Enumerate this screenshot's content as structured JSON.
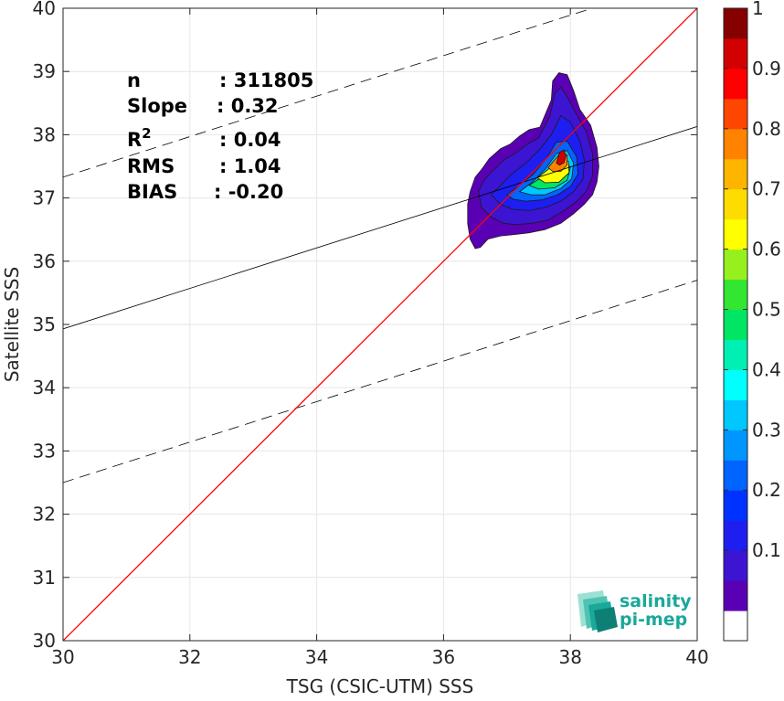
{
  "chart_data": {
    "type": "heatmap",
    "subtype": "scatter density contour",
    "xlabel": "TSG (CSIC-UTM) SSS",
    "ylabel": "Satellite SSS",
    "xlim": [
      30,
      40
    ],
    "ylim": [
      30,
      40
    ],
    "xticks": [
      "30",
      "32",
      "34",
      "36",
      "38",
      "40"
    ],
    "yticks": [
      "30",
      "31",
      "32",
      "33",
      "34",
      "35",
      "36",
      "37",
      "38",
      "39",
      "40"
    ],
    "grid": true,
    "identity_line": {
      "color": "#ff0000",
      "x": [
        30,
        40
      ],
      "y": [
        30,
        40
      ]
    },
    "regression_line": {
      "color": "#000000",
      "x": [
        30,
        40
      ],
      "y": [
        34.93,
        38.13
      ]
    },
    "error_bounds": [
      {
        "style": "dashed",
        "x": [
          30,
          40
        ],
        "y": [
          37.33,
          40.53
        ]
      },
      {
        "style": "dashed",
        "x": [
          30,
          40
        ],
        "y": [
          32.5,
          35.7
        ]
      }
    ],
    "stats": [
      {
        "label": "n",
        "value": ": 311805"
      },
      {
        "label": "Slope",
        "value": ": 0.32"
      },
      {
        "label": "R",
        "sup": "2",
        "value": ": 0.04"
      },
      {
        "label": "RMS",
        "value": ": 1.04"
      },
      {
        "label": "BIAS",
        "value": ": -0.20"
      }
    ],
    "colorbar": {
      "ticks": [
        "0.1",
        "0.2",
        "0.3",
        "0.4",
        "0.5",
        "0.6",
        "0.7",
        "0.8",
        "0.9",
        "1"
      ],
      "tick_values": [
        0.1,
        0.2,
        0.3,
        0.4,
        0.5,
        0.6,
        0.7,
        0.8,
        0.9,
        1.0
      ],
      "levels": [
        0,
        0.05,
        0.1,
        0.15,
        0.2,
        0.25,
        0.3,
        0.35,
        0.4,
        0.45,
        0.5,
        0.55,
        0.6,
        0.65,
        0.7,
        0.75,
        0.8,
        0.85,
        0.9,
        0.95,
        1.0
      ],
      "colors": [
        "#ffffff",
        "#5a00b4",
        "#3c14d2",
        "#1e1ef0",
        "#0032ff",
        "#0064ff",
        "#0096ff",
        "#00c8ff",
        "#00ffff",
        "#00f0b4",
        "#00e664",
        "#32e632",
        "#96f01e",
        "#ffff00",
        "#ffdc00",
        "#ffb400",
        "#ff8200",
        "#ff4600",
        "#ff0000",
        "#d20000",
        "#870000"
      ]
    },
    "density_contours": [
      {
        "level": 0.05,
        "points": [
          [
            36.42,
            37.1
          ],
          [
            36.5,
            37.33
          ],
          [
            36.6,
            37.45
          ],
          [
            36.72,
            37.62
          ],
          [
            36.9,
            37.78
          ],
          [
            37.05,
            37.85
          ],
          [
            37.2,
            37.98
          ],
          [
            37.35,
            38.08
          ],
          [
            37.52,
            38.12
          ],
          [
            37.7,
            38.55
          ],
          [
            37.72,
            38.85
          ],
          [
            37.82,
            38.98
          ],
          [
            37.95,
            38.95
          ],
          [
            38.05,
            38.7
          ],
          [
            38.15,
            38.4
          ],
          [
            38.32,
            38.15
          ],
          [
            38.42,
            37.8
          ],
          [
            38.45,
            37.5
          ],
          [
            38.42,
            37.25
          ],
          [
            38.35,
            37.05
          ],
          [
            38.22,
            36.9
          ],
          [
            38.05,
            36.75
          ],
          [
            37.85,
            36.6
          ],
          [
            37.6,
            36.5
          ],
          [
            37.35,
            36.45
          ],
          [
            37.1,
            36.42
          ],
          [
            36.9,
            36.4
          ],
          [
            36.7,
            36.35
          ],
          [
            36.58,
            36.22
          ],
          [
            36.5,
            36.2
          ],
          [
            36.42,
            36.35
          ],
          [
            36.38,
            36.6
          ],
          [
            36.38,
            36.9
          ]
        ]
      },
      {
        "level": 0.1,
        "points": [
          [
            36.55,
            37.1
          ],
          [
            36.65,
            37.3
          ],
          [
            36.8,
            37.45
          ],
          [
            36.95,
            37.6
          ],
          [
            37.15,
            37.72
          ],
          [
            37.32,
            37.85
          ],
          [
            37.5,
            37.95
          ],
          [
            37.68,
            38.3
          ],
          [
            37.75,
            38.65
          ],
          [
            37.85,
            38.75
          ],
          [
            37.95,
            38.6
          ],
          [
            38.08,
            38.35
          ],
          [
            38.25,
            38.05
          ],
          [
            38.35,
            37.7
          ],
          [
            38.35,
            37.35
          ],
          [
            38.25,
            37.1
          ],
          [
            38.1,
            36.95
          ],
          [
            37.9,
            36.8
          ],
          [
            37.65,
            36.65
          ],
          [
            37.4,
            36.6
          ],
          [
            37.15,
            36.58
          ],
          [
            36.95,
            36.6
          ],
          [
            36.75,
            36.7
          ],
          [
            36.6,
            36.85
          ]
        ]
      },
      {
        "level": 0.15,
        "points": [
          [
            36.75,
            37.05
          ],
          [
            36.9,
            37.2
          ],
          [
            37.1,
            37.4
          ],
          [
            37.3,
            37.55
          ],
          [
            37.5,
            37.75
          ],
          [
            37.7,
            38.0
          ],
          [
            37.85,
            38.3
          ],
          [
            38.0,
            38.2
          ],
          [
            38.15,
            37.9
          ],
          [
            38.22,
            37.6
          ],
          [
            38.2,
            37.3
          ],
          [
            38.05,
            37.1
          ],
          [
            37.85,
            36.95
          ],
          [
            37.6,
            36.85
          ],
          [
            37.35,
            36.8
          ],
          [
            37.1,
            36.82
          ],
          [
            36.9,
            36.9
          ]
        ]
      },
      {
        "level": 0.25,
        "points": [
          [
            37.0,
            37.05
          ],
          [
            37.2,
            37.2
          ],
          [
            37.42,
            37.38
          ],
          [
            37.62,
            37.62
          ],
          [
            37.78,
            37.88
          ],
          [
            37.95,
            37.9
          ],
          [
            38.1,
            37.65
          ],
          [
            38.12,
            37.38
          ],
          [
            38.0,
            37.18
          ],
          [
            37.8,
            37.05
          ],
          [
            37.55,
            36.97
          ],
          [
            37.3,
            36.95
          ],
          [
            37.1,
            36.98
          ]
        ]
      },
      {
        "level": 0.35,
        "points": [
          [
            37.2,
            37.1
          ],
          [
            37.4,
            37.25
          ],
          [
            37.6,
            37.45
          ],
          [
            37.78,
            37.7
          ],
          [
            37.95,
            37.75
          ],
          [
            38.05,
            37.55
          ],
          [
            38.02,
            37.3
          ],
          [
            37.85,
            37.15
          ],
          [
            37.6,
            37.05
          ],
          [
            37.38,
            37.05
          ]
        ]
      },
      {
        "level": 0.5,
        "points": [
          [
            37.35,
            37.2
          ],
          [
            37.55,
            37.33
          ],
          [
            37.72,
            37.52
          ],
          [
            37.9,
            37.62
          ],
          [
            38.0,
            37.48
          ],
          [
            37.95,
            37.28
          ],
          [
            37.75,
            37.16
          ],
          [
            37.5,
            37.14
          ]
        ]
      },
      {
        "level": 0.65,
        "points": [
          [
            37.48,
            37.32
          ],
          [
            37.65,
            37.45
          ],
          [
            37.82,
            37.62
          ],
          [
            37.97,
            37.58
          ],
          [
            37.98,
            37.4
          ],
          [
            37.82,
            37.25
          ],
          [
            37.6,
            37.24
          ]
        ]
      },
      {
        "level": 0.8,
        "points": [
          [
            37.65,
            37.48
          ],
          [
            37.75,
            37.6
          ],
          [
            37.85,
            37.72
          ],
          [
            37.95,
            37.68
          ],
          [
            37.95,
            37.52
          ],
          [
            37.85,
            37.42
          ],
          [
            37.72,
            37.42
          ]
        ]
      },
      {
        "level": 0.95,
        "points": [
          [
            37.78,
            37.55
          ],
          [
            37.83,
            37.72
          ],
          [
            37.9,
            37.76
          ],
          [
            37.93,
            37.66
          ],
          [
            37.9,
            37.56
          ],
          [
            37.83,
            37.52
          ]
        ]
      }
    ]
  },
  "logo": {
    "line1": "salinity",
    "line2": "pi-mep",
    "color": "#1aa89a"
  }
}
